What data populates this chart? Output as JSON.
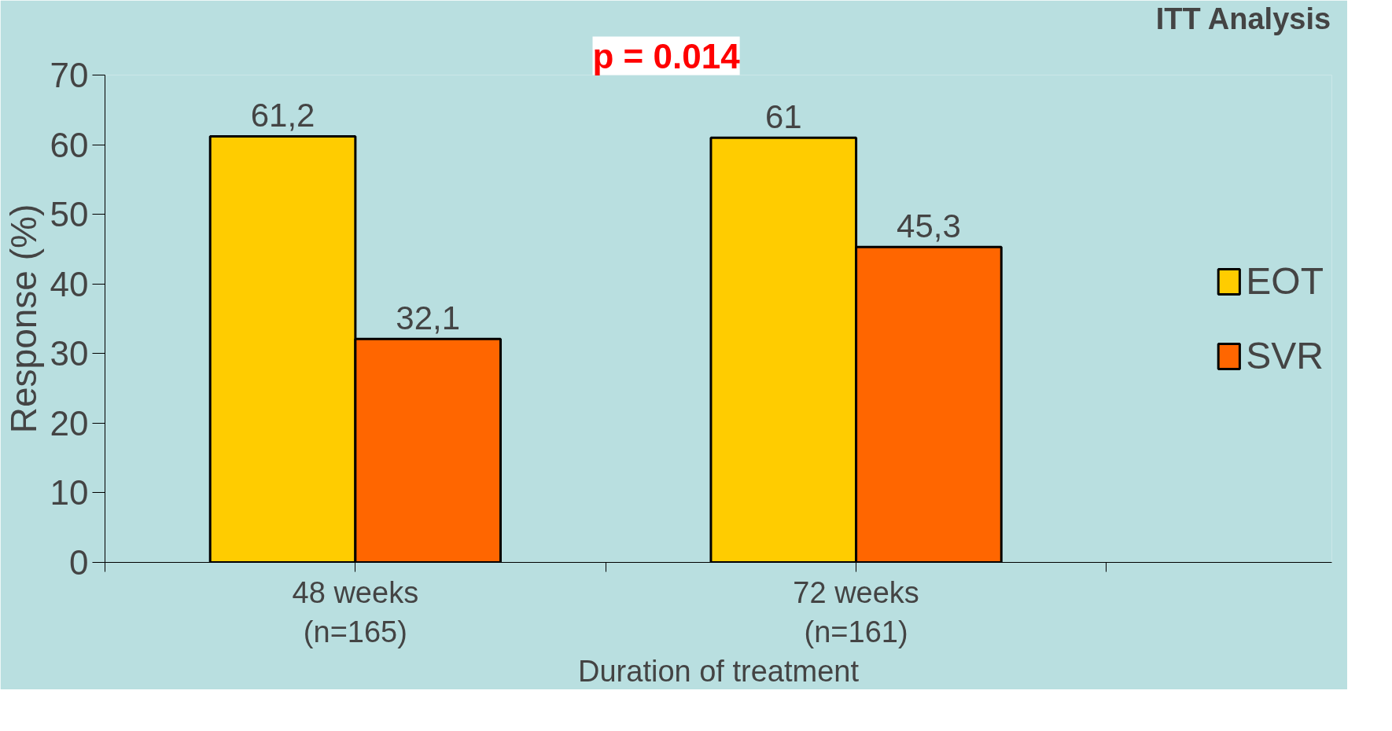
{
  "chart_data": {
    "type": "bar",
    "categories": [
      "48 weeks\n(n=165)",
      "72 weeks\n(n=161)"
    ],
    "xlabel": "Duration of treatment",
    "ylabel": "Response (%)",
    "series": [
      {
        "name": "EOT",
        "color": "#ffcc00",
        "values": [
          61.2,
          61
        ],
        "value_labels": [
          "61,2",
          "61"
        ]
      },
      {
        "name": "SVR",
        "color": "#ff6600",
        "values": [
          32.1,
          45.3
        ],
        "value_labels": [
          "32,1",
          "45,3"
        ]
      }
    ],
    "ylim": [
      0,
      70
    ],
    "yticks": [
      0,
      10,
      20,
      30,
      40,
      50,
      60,
      70
    ],
    "grid": false,
    "legend": "right",
    "annotations": [
      "p = 0.014",
      "ITT Analysis"
    ]
  }
}
